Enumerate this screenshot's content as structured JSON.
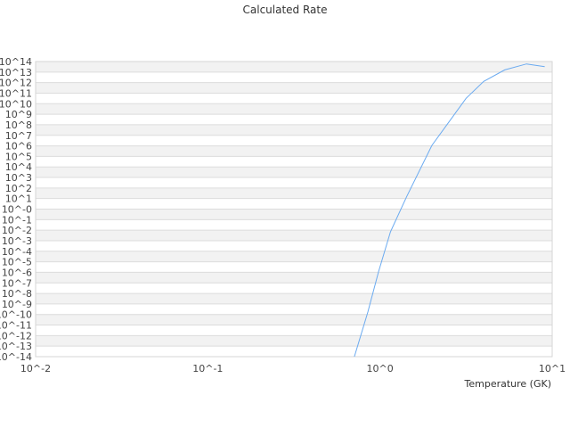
{
  "chart_data": {
    "type": "line",
    "title": "Calculated Rate",
    "xlabel": "Temperature (GK)",
    "ylabel": "",
    "xscale": "log",
    "yscale": "log",
    "xlim": [
      0.01,
      10
    ],
    "ylim": [
      1e-14,
      100000000000000.0
    ],
    "x_tick_labels": [
      "10^-2",
      "10^-1",
      "10^0",
      "10^1"
    ],
    "y_tick_labels": [
      "10^14",
      "10^13",
      "10^12",
      "10^11",
      "10^10",
      "10^9",
      "10^8",
      "10^7",
      "10^6",
      "10^5",
      "10^4",
      "10^3",
      "10^2",
      "10^1",
      "10^-0",
      "10^-1",
      "10^-2",
      "10^-3",
      "10^-4",
      "10^-5",
      "10^-6",
      "10^-7",
      "10^-8",
      "10^-9",
      "10^-10",
      "10^-11",
      "10^-12",
      "10^-13",
      "10^-14"
    ],
    "grid": true,
    "legend": "none",
    "series": [
      {
        "color": "#6aaaf0",
        "x": [
          0.71,
          0.85,
          0.98,
          1.15,
          1.43,
          2.0,
          3.16,
          4.0,
          5.3,
          7.1,
          9.05
        ],
        "y": [
          1e-14,
          1.7e-10,
          1.1e-06,
          0.0069,
          16.0,
          1100000.0,
          32000000000.0,
          1300000000000.0,
          16000000000000.0,
          59000000000000.0,
          32000000000000.0
        ]
      }
    ]
  }
}
